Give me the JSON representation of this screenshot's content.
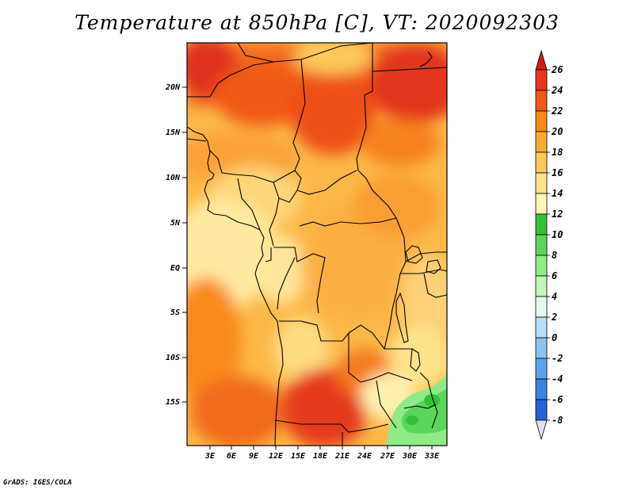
{
  "title": "Temperature at 850hPa [C], VT: 2020092303",
  "credit": "GrADS: IGES/COLA",
  "map": {
    "variable": "Temperature at 850hPa",
    "unit": "C",
    "valid_time": "2020092303",
    "lon_ticks": [
      "3E",
      "6E",
      "9E",
      "12E",
      "15E",
      "18E",
      "21E",
      "24E",
      "27E",
      "30E",
      "33E"
    ],
    "lat_ticks": [
      "20N",
      "15N",
      "10N",
      "5N",
      "EQ",
      "5S",
      "10S",
      "15S"
    ]
  },
  "colorbar": {
    "labels": [
      "26",
      "24",
      "22",
      "20",
      "18",
      "16",
      "14",
      "12",
      "10",
      "8",
      "6",
      "4",
      "2",
      "0",
      "-2",
      "-4",
      "-6",
      "-8"
    ],
    "colors": [
      "#d7191c",
      "#e8361c",
      "#f05a18",
      "#f98a15",
      "#fcaa2e",
      "#fdc85a",
      "#fee28a",
      "#fff5b5",
      "#34c13a",
      "#5bd65b",
      "#8fea88",
      "#c2f5b8",
      "#e4f9ee",
      "#b7dff8",
      "#8ec3f1",
      "#5da3ec",
      "#3a83e2",
      "#2563d4",
      "#1540b3",
      "#0a1f85",
      "#0a0a60",
      "#e0e0f5"
    ]
  }
}
